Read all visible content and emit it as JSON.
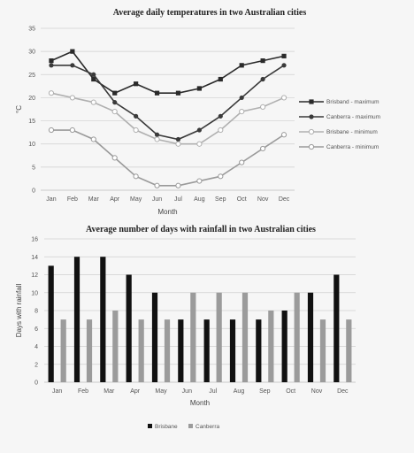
{
  "chart_data": [
    {
      "type": "line",
      "title": "Average daily temperatures in two Australian cities",
      "xlabel": "Month",
      "ylabel": "°C",
      "ylim": [
        0,
        35
      ],
      "yticks": [
        "0",
        "5",
        "10",
        "15",
        "20",
        "25",
        "30",
        "35"
      ],
      "categories": [
        "Jan",
        "Feb",
        "Mar",
        "Apr",
        "May",
        "Jun",
        "Jul",
        "Aug",
        "Sep",
        "Oct",
        "Nov",
        "Dec"
      ],
      "grid": true,
      "legend_position": "right",
      "series": [
        {
          "name": "Brisband - maximum",
          "marker": "filled-square",
          "color": "#2a2a2a",
          "values": [
            28,
            30,
            24,
            21,
            23,
            21,
            21,
            22,
            24,
            27,
            28,
            29
          ]
        },
        {
          "name": "Canberra - maximum",
          "marker": "filled-circle",
          "color": "#3a3a3a",
          "values": [
            27,
            27,
            25,
            19,
            16,
            12,
            11,
            13,
            16,
            20,
            24,
            27
          ]
        },
        {
          "name": "Brisbane - minimum",
          "marker": "open-circle",
          "color": "#b0b0b0",
          "values": [
            21,
            20,
            19,
            17,
            13,
            11,
            10,
            10,
            13,
            17,
            18,
            20
          ]
        },
        {
          "name": "Canberra - minimum",
          "marker": "open-circle",
          "color": "#9a9a9a",
          "values": [
            13,
            13,
            11,
            7,
            3,
            1,
            1,
            2,
            3,
            6,
            9,
            12
          ]
        }
      ]
    },
    {
      "type": "bar",
      "title": "Average number of days with rainfall in two Australian cities",
      "xlabel": "Month",
      "ylabel": "Days with rainfall",
      "ylim": [
        0,
        16
      ],
      "yticks": [
        "0",
        "2",
        "4",
        "6",
        "8",
        "10",
        "12",
        "14",
        "16"
      ],
      "categories": [
        "Jan",
        "Feb",
        "Mar",
        "Apr",
        "May",
        "Jun",
        "Jul",
        "Aug",
        "Sep",
        "Oct",
        "Nov",
        "Dec"
      ],
      "grid": true,
      "legend_position": "bottom",
      "series": [
        {
          "name": "Brisbane",
          "color": "#111111",
          "values": [
            13,
            14,
            14,
            12,
            10,
            7,
            7,
            7,
            7,
            8,
            10,
            12
          ]
        },
        {
          "name": "Canberra",
          "color": "#9b9b9b",
          "values": [
            7,
            7,
            8,
            7,
            7,
            10,
            10,
            10,
            8,
            10,
            7,
            7
          ]
        }
      ]
    }
  ]
}
